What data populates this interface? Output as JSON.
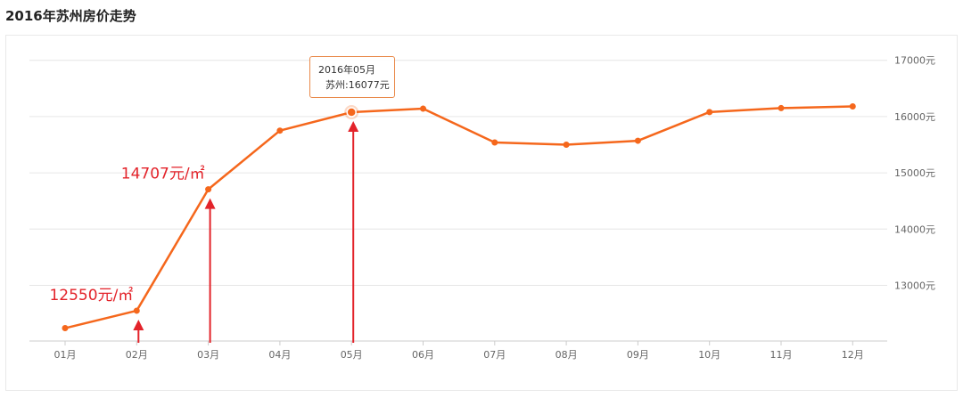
{
  "page": {
    "title": "2016年苏州房价走势"
  },
  "colors": {
    "line": "#f5671c",
    "annotation": "#e3232a",
    "grid": "#e6e6e6",
    "axis": "#cccccc"
  },
  "chart_data": {
    "type": "line",
    "title": "2016年苏州房价走势",
    "categories": [
      "01月",
      "02月",
      "03月",
      "04月",
      "05月",
      "06月",
      "07月",
      "08月",
      "09月",
      "10月",
      "11月",
      "12月"
    ],
    "series": [
      {
        "name": "苏州",
        "values": [
          12240,
          12550,
          14707,
          15750,
          16077,
          16140,
          15540,
          15500,
          15570,
          16080,
          16150,
          16180
        ]
      }
    ],
    "ylim": [
      12000,
      17000
    ],
    "y_ticks": [
      13000,
      14000,
      15000,
      16000,
      17000
    ],
    "y_tick_labels": [
      "13000元",
      "14000元",
      "15000元",
      "16000元",
      "17000元"
    ],
    "y_axis_position": "right",
    "grid": true,
    "legend": "none",
    "tooltip": {
      "category_index": 4,
      "line1": "2016年05月",
      "line2": "苏州:16077元"
    },
    "annotations": [
      {
        "category_index": 1,
        "text": "12550元/㎡"
      },
      {
        "category_index": 2,
        "text": "14707元/㎡"
      },
      {
        "category_index": 4,
        "text": ""
      }
    ]
  }
}
